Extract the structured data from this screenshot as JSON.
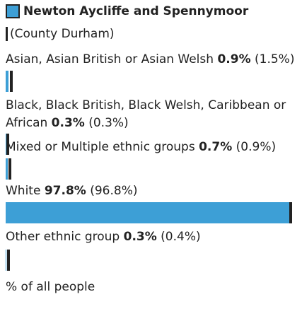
{
  "legend": {
    "primary": "Newton Aycliffe and Spennymoor",
    "comparison": "(County Durham)"
  },
  "colors": {
    "primary": "#3d9fd6",
    "comparison": "#222222"
  },
  "chart_data": {
    "type": "bar",
    "categories": [
      "Asian, Asian British or Asian Welsh",
      "Black, Black British, Black Welsh, Caribbean or African",
      "Mixed or Multiple ethnic groups",
      "White",
      "Other ethnic group"
    ],
    "series": [
      {
        "name": "Newton Aycliffe and Spennymoor",
        "values": [
          0.9,
          0.3,
          0.7,
          97.8,
          0.3
        ]
      },
      {
        "name": "(County Durham)",
        "values": [
          1.5,
          0.3,
          0.9,
          96.8,
          0.4
        ]
      }
    ],
    "value_labels": [
      "0.9%",
      "0.3%",
      "0.7%",
      "97.8%",
      "0.3%"
    ],
    "comparison_labels": [
      "(1.5%)",
      "(0.3%)",
      "(0.9%)",
      "(96.8%)",
      "(0.4%)"
    ],
    "xlim": [
      0,
      100
    ],
    "xlabel": "% of all people"
  }
}
